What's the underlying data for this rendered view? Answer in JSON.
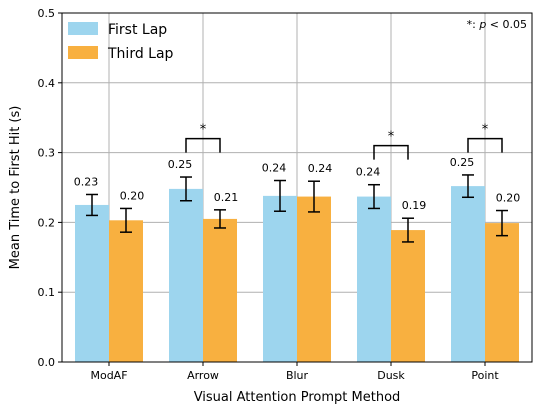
{
  "chart_data": {
    "type": "bar",
    "xlabel": "Visual Attention Prompt Method",
    "ylabel": "Mean Time to First Hit (s)",
    "ylim": [
      0.0,
      0.5
    ],
    "yticks": [
      "0.0",
      "0.1",
      "0.2",
      "0.3",
      "0.4",
      "0.5"
    ],
    "grid": true,
    "legend_position": "top-left",
    "categories": [
      "ModAF",
      "Arrow",
      "Blur",
      "Dusk",
      "Point"
    ],
    "series": [
      {
        "name": "First Lap",
        "color": "#9dd5ee",
        "values": [
          0.225,
          0.248,
          0.238,
          0.237,
          0.252
        ],
        "errors": [
          0.015,
          0.017,
          0.022,
          0.017,
          0.016
        ],
        "labels": [
          "0.23",
          "0.25",
          "0.24",
          "0.24",
          "0.25"
        ]
      },
      {
        "name": "Third Lap",
        "color": "#f8b040",
        "values": [
          0.203,
          0.205,
          0.237,
          0.189,
          0.199
        ],
        "errors": [
          0.017,
          0.013,
          0.022,
          0.017,
          0.018
        ],
        "labels": [
          "0.20",
          "0.21",
          "0.24",
          "0.19",
          "0.20"
        ]
      }
    ],
    "significance": [
      {
        "category": "Arrow",
        "bracket_y": 0.32,
        "label": "*"
      },
      {
        "category": "Dusk",
        "bracket_y": 0.31,
        "label": "*"
      },
      {
        "category": "Point",
        "bracket_y": 0.32,
        "label": "*"
      }
    ],
    "note": {
      "prefix": "*: ",
      "p": "p",
      "suffix": " < 0.05"
    }
  }
}
